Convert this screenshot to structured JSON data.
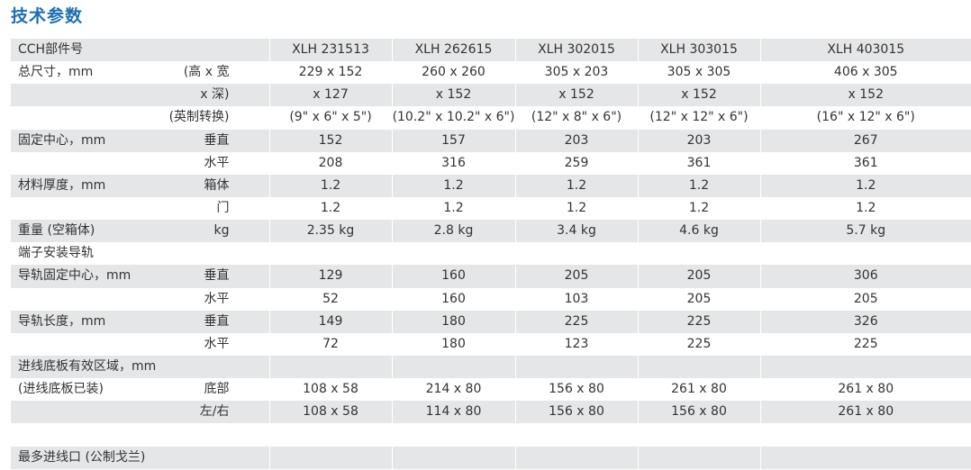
{
  "title": "技术参数",
  "header": {
    "label": "CCH部件号",
    "sub": "",
    "values": [
      "XLH 231513",
      "XLH 262615",
      "XLH 302015",
      "XLH 303015",
      "XLH 403015"
    ]
  },
  "rows": [
    {
      "label": "总尺寸，mm",
      "sub": "(高 x 宽",
      "values": [
        "229 x 152",
        "260 x 260",
        "305 x 203",
        "305 x 305",
        "406 x 305"
      ]
    },
    {
      "label": "",
      "sub": "x 深)",
      "values": [
        "x 127",
        "x 152",
        "x 152",
        "x 152",
        "x 152"
      ]
    },
    {
      "label": "",
      "sub": "(英制转换)",
      "values": [
        "(9\" x 6\" x 5\")",
        "(10.2\" x 10.2\" x 6\")",
        "(12\" x 8\" x 6\")",
        "(12\" x 12\" x 6\")",
        "(16\" x 12\" x 6\")"
      ]
    },
    {
      "label": "固定中心，mm",
      "sub": "垂直",
      "values": [
        "152",
        "157",
        "203",
        "203",
        "267"
      ]
    },
    {
      "label": "",
      "sub": "水平",
      "values": [
        "208",
        "316",
        "259",
        "361",
        "361"
      ]
    },
    {
      "label": "材料厚度，mm",
      "sub": "箱体",
      "values": [
        "1.2",
        "1.2",
        "1.2",
        "1.2",
        "1.2"
      ]
    },
    {
      "label": "",
      "sub": "门",
      "values": [
        "1.2",
        "1.2",
        "1.2",
        "1.2",
        "1.2"
      ]
    },
    {
      "label": "重量 (空箱体)",
      "sub": "kg",
      "values": [
        "2.35  kg",
        "2.8  kg",
        "3.4  kg",
        "4.6  kg",
        "5.7  kg"
      ]
    },
    {
      "label": "端子安装导轨",
      "sub": "",
      "values": [
        "",
        "",
        "",
        "",
        ""
      ]
    },
    {
      "label": "导轨固定中心，mm",
      "sub": "垂直",
      "values": [
        "129",
        "160",
        "205",
        "205",
        "306"
      ]
    },
    {
      "label": "",
      "sub": "水平",
      "values": [
        "52",
        "160",
        "103",
        "205",
        "205"
      ]
    },
    {
      "label": "导轨长度，mm",
      "sub": "垂直",
      "values": [
        "149",
        "180",
        "225",
        "225",
        "326"
      ]
    },
    {
      "label": "",
      "sub": "水平",
      "values": [
        "72",
        "180",
        "123",
        "225",
        "225"
      ]
    },
    {
      "label": "进线底板有效区域，mm",
      "sub": "",
      "values": [
        "",
        "",
        "",
        "",
        ""
      ]
    },
    {
      "label": "(进线底板已装)",
      "sub": "底部",
      "values": [
        "108 x 58",
        "214 x 80",
        "156 x 80",
        "261 x 80",
        "261 x 80"
      ]
    },
    {
      "label": "",
      "sub": "左/右",
      "values": [
        "108 x 58",
        "114 x 80",
        "156 x 80",
        "156 x 80",
        "261 x 80"
      ]
    },
    {
      "label": "",
      "sub": "",
      "values": [
        "",
        "",
        "",
        "",
        ""
      ]
    },
    {
      "label": "最多进线口 (公制戈兰)",
      "sub": "",
      "values": [
        "",
        "",
        "",
        "",
        ""
      ]
    }
  ],
  "colors": {
    "title": "#1f6fb2",
    "shade": "#e4e6e8",
    "text": "#333333"
  }
}
